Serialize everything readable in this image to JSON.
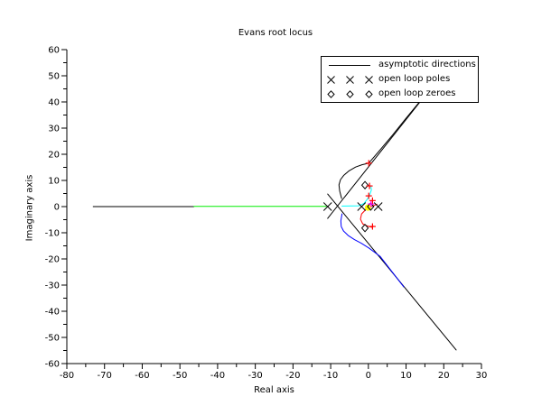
{
  "title": "Evans root locus",
  "axes": {
    "xlabel": "Real axis",
    "ylabel": "Imaginary axis",
    "xticks": [
      -80,
      -70,
      -60,
      -50,
      -40,
      -30,
      -20,
      -10,
      0,
      10,
      20,
      30
    ],
    "yticks": [
      -60,
      -50,
      -40,
      -30,
      -20,
      -10,
      0,
      10,
      20,
      30,
      40,
      50,
      60
    ]
  },
  "legend": {
    "items": [
      {
        "label": "asymptotic directions",
        "marker": "line"
      },
      {
        "label": "open loop poles",
        "marker": "cross"
      },
      {
        "label": "open loop zeroes",
        "marker": "diamond"
      }
    ]
  },
  "colors": {
    "axis": "#000000",
    "asymptote": "#000000",
    "pole_marker": "#000000",
    "zero_marker": "#000000",
    "closed_loop_plus": "#ff0000",
    "selected_plus": "#ff00ff",
    "gain_marker": "#ffff00"
  },
  "chart_data": {
    "type": "line",
    "title": "Evans root locus",
    "xlabel": "Real axis",
    "ylabel": "Imaginary axis",
    "xlim": [
      -80,
      30
    ],
    "ylim": [
      -60,
      60
    ],
    "grid": false,
    "legend_position": "top-right",
    "open_loop_poles": [
      [
        -10.8,
        0
      ],
      [
        -1.8,
        0
      ],
      [
        2.6,
        0
      ]
    ],
    "open_loop_zeroes": [
      [
        -0.9,
        8.2
      ],
      [
        -0.9,
        -8.2
      ],
      [
        0.6,
        0
      ]
    ],
    "asymptotes": [
      {
        "name": "asymptote-180deg",
        "points": [
          [
            -73.0,
            0
          ],
          [
            -46.3,
            0
          ]
        ]
      },
      {
        "name": "asymptote-plus-60deg",
        "points": [
          [
            -10.8,
            -4.5
          ],
          [
            13.7,
            40.0
          ]
        ]
      },
      {
        "name": "asymptote-minus-60deg",
        "points": [
          [
            -10.8,
            4.8
          ],
          [
            23.3,
            -54.8
          ]
        ]
      }
    ],
    "branches": [
      {
        "name": "real-axis-branch",
        "color": "#00ee00",
        "points": [
          [
            -46.3,
            0.1
          ],
          [
            -11.2,
            0.1
          ]
        ]
      },
      {
        "name": "upper-complex-branch",
        "color": "#000000",
        "points": [
          [
            -7.1,
            3.1
          ],
          [
            -7.6,
            5.9
          ],
          [
            -7.8,
            8.3
          ],
          [
            -7.4,
            10.3
          ],
          [
            -6.5,
            12.0
          ],
          [
            -5.1,
            13.7
          ],
          [
            -3.4,
            15.1
          ],
          [
            -1.7,
            16.0
          ],
          [
            0.1,
            16.6
          ],
          [
            3.0,
            21.5
          ],
          [
            6.4,
            27.3
          ],
          [
            9.9,
            33.6
          ],
          [
            13.4,
            39.7
          ]
        ]
      },
      {
        "name": "lower-complex-branch",
        "color": "#0000ff",
        "points": [
          [
            -7.0,
            -2.8
          ],
          [
            -7.3,
            -5.5
          ],
          [
            -7.2,
            -7.6
          ],
          [
            -6.6,
            -9.3
          ],
          [
            -5.4,
            -11.0
          ],
          [
            -3.7,
            -12.6
          ],
          [
            -1.9,
            -14.0
          ],
          [
            0.1,
            -15.8
          ],
          [
            3.1,
            -19.0
          ],
          [
            9.4,
            -30.7
          ]
        ]
      },
      {
        "name": "branch-to-upper-zero",
        "color": "#00ffff",
        "points": [
          [
            -7.0,
            0.2
          ],
          [
            -2.6,
            0.3
          ],
          [
            -1.2,
            1.2
          ],
          [
            -0.3,
            2.8
          ],
          [
            0.4,
            4.6
          ],
          [
            0.8,
            6.4
          ],
          [
            0.7,
            7.6
          ]
        ]
      },
      {
        "name": "branch-to-lower-zero",
        "color": "#ff0000",
        "points": [
          [
            2.3,
            0.9
          ],
          [
            0.9,
            0.1
          ],
          [
            -0.6,
            -1.0
          ],
          [
            -1.8,
            -2.8
          ],
          [
            -2.1,
            -4.8
          ],
          [
            -1.5,
            -6.6
          ],
          [
            -0.3,
            -7.4
          ],
          [
            0.9,
            -7.9
          ],
          [
            1.4,
            -7.5
          ]
        ]
      }
    ],
    "closed_loop_plus_markers": [
      [
        0.1,
        16.6
      ],
      [
        0.3,
        7.9
      ],
      [
        0.1,
        4.1
      ],
      [
        1.1,
        2.3
      ],
      [
        1.1,
        -7.6
      ]
    ],
    "selected_plus_markers": [
      [
        0.7,
        1.0
      ]
    ],
    "gain_markers": [
      [
        -0.1,
        -0.4
      ]
    ]
  }
}
